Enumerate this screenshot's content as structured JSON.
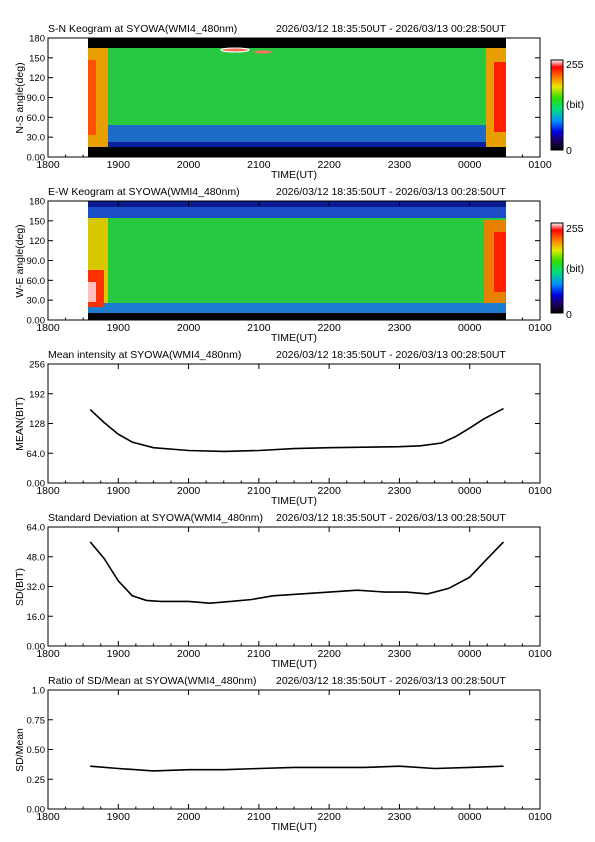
{
  "chart_data": [
    {
      "type": "heatmap",
      "title": "S-N Keogram at SYOWA(WMI4_480nm)",
      "time_range": "2026/03/12 18:35:50UT - 2026/03/13 00:28:50UT",
      "xlabel": "TIME(UT)",
      "ylabel": "N-S angle(deg)",
      "x_ticks": [
        "1800",
        "1900",
        "2000",
        "2100",
        "2200",
        "2300",
        "0000",
        "0100"
      ],
      "y_ticks": [
        "0.00",
        "30.0",
        "60.0",
        "90.0",
        "120",
        "150",
        "180"
      ],
      "ylim": [
        0,
        180
      ],
      "colorbar": {
        "labels": [
          "255",
          "(bit)",
          "0"
        ],
        "range": [
          0,
          255
        ]
      }
    },
    {
      "type": "heatmap",
      "title": "E-W Keogram at SYOWA(WMI4_480nm)",
      "time_range": "2026/03/12 18:35:50UT - 2026/03/13 00:28:50UT",
      "xlabel": "TIME(UT)",
      "ylabel": "W-E angle(deg)",
      "x_ticks": [
        "1800",
        "1900",
        "2000",
        "2100",
        "2200",
        "2300",
        "0000",
        "0100"
      ],
      "y_ticks": [
        "0.00",
        "30.0",
        "60.0",
        "90.0",
        "120",
        "150",
        "180"
      ],
      "ylim": [
        0,
        180
      ],
      "colorbar": {
        "labels": [
          "255",
          "(bit)",
          "0"
        ],
        "range": [
          0,
          255
        ]
      }
    },
    {
      "type": "line",
      "title": "Mean intensity at SYOWA(WMI4_480nm)",
      "time_range": "2026/03/12 18:35:50UT - 2026/03/13 00:28:50UT",
      "xlabel": "TIME(UT)",
      "ylabel": "MEAN(BIT)",
      "x_ticks": [
        "1800",
        "1900",
        "2000",
        "2100",
        "2200",
        "2300",
        "0000",
        "0100"
      ],
      "y_ticks": [
        "0.00",
        "64.0",
        "128",
        "192",
        "256"
      ],
      "ylim": [
        0,
        256
      ],
      "x": [
        0.6,
        0.8,
        1.0,
        1.2,
        1.5,
        2.0,
        2.5,
        3.0,
        3.5,
        4.0,
        4.5,
        5.0,
        5.3,
        5.6,
        5.8,
        6.0,
        6.2,
        6.48
      ],
      "y": [
        158,
        130,
        105,
        88,
        76,
        70,
        68,
        70,
        74,
        76,
        77,
        78,
        80,
        86,
        100,
        118,
        138,
        160
      ]
    },
    {
      "type": "line",
      "title": "Standard Deviation at SYOWA(WMI4_480nm)",
      "time_range": "2026/03/12 18:35:50UT - 2026/03/13 00:28:50UT",
      "xlabel": "TIME(UT)",
      "ylabel": "SD(BIT)",
      "x_ticks": [
        "1800",
        "1900",
        "2000",
        "2100",
        "2200",
        "2300",
        "0000",
        "0100"
      ],
      "y_ticks": [
        "0.00",
        "16.0",
        "32.0",
        "48.0",
        "64.0"
      ],
      "ylim": [
        0,
        64
      ],
      "x": [
        0.6,
        0.8,
        1.0,
        1.2,
        1.4,
        1.6,
        2.0,
        2.3,
        2.6,
        2.9,
        3.2,
        3.6,
        4.0,
        4.4,
        4.8,
        5.1,
        5.4,
        5.7,
        6.0,
        6.2,
        6.48
      ],
      "y": [
        56,
        47,
        35,
        27,
        24.5,
        24,
        24,
        23,
        24,
        25,
        27,
        28,
        29,
        30,
        29,
        29,
        28,
        31,
        37,
        45,
        56
      ]
    },
    {
      "type": "line",
      "title": "Ratio of SD/Mean at SYOWA(WMI4_480nm)",
      "time_range": "2026/03/12 18:35:50UT - 2026/03/13 00:28:50UT",
      "xlabel": "TIME(UT)",
      "ylabel": "SD/Mean",
      "x_ticks": [
        "1800",
        "1900",
        "2000",
        "2100",
        "2200",
        "2300",
        "0000",
        "0100"
      ],
      "y_ticks": [
        "0.00",
        "0.25",
        "0.50",
        "0.75",
        "1.0"
      ],
      "ylim": [
        0,
        1
      ],
      "x": [
        0.6,
        1.0,
        1.5,
        2.0,
        2.5,
        3.0,
        3.5,
        4.0,
        4.5,
        5.0,
        5.5,
        6.0,
        6.48
      ],
      "y": [
        0.36,
        0.34,
        0.32,
        0.33,
        0.33,
        0.34,
        0.35,
        0.35,
        0.35,
        0.36,
        0.34,
        0.35,
        0.36
      ]
    }
  ]
}
